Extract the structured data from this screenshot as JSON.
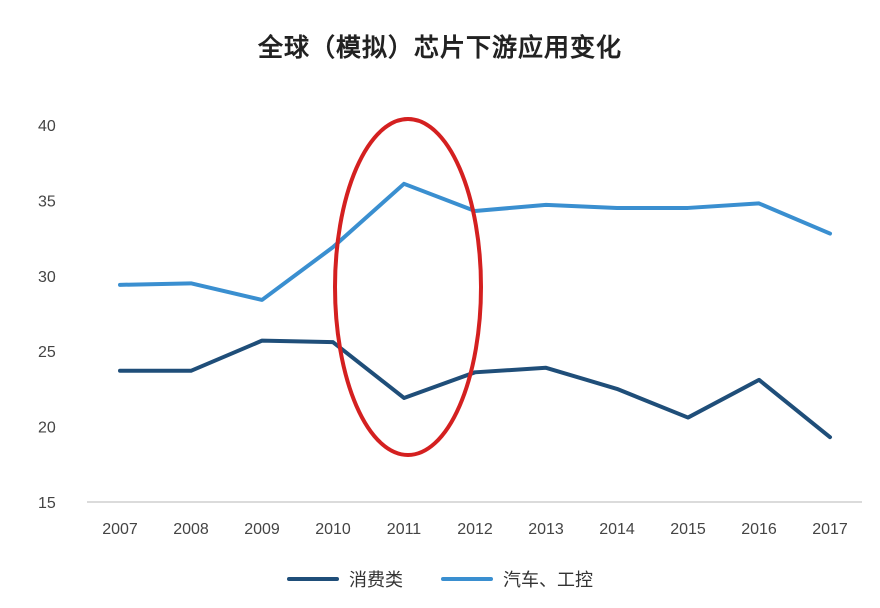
{
  "chart_data": {
    "type": "line",
    "title": "全球（模拟）芯片下游应用变化",
    "x": [
      "2007",
      "2008",
      "2009",
      "2010",
      "2011",
      "2012",
      "2013",
      "2014",
      "2015",
      "2016",
      "2017"
    ],
    "series": [
      {
        "name": "消费类",
        "color": "#1f4e79",
        "values": [
          23.7,
          23.7,
          25.7,
          25.6,
          21.9,
          23.6,
          23.9,
          22.5,
          20.6,
          23.1,
          19.3
        ]
      },
      {
        "name": "汽车、工控",
        "color": "#3a8fd0",
        "values": [
          29.4,
          29.5,
          28.4,
          31.9,
          36.1,
          34.3,
          34.7,
          34.5,
          34.5,
          34.8,
          32.8
        ]
      }
    ],
    "ylim": [
      15,
      40
    ],
    "yticks": [
      15,
      20,
      25,
      30,
      35,
      40
    ],
    "legend_position": "bottom",
    "grid": false,
    "annotation": {
      "shape": "ellipse",
      "color": "#d42020",
      "x": "2011"
    }
  }
}
